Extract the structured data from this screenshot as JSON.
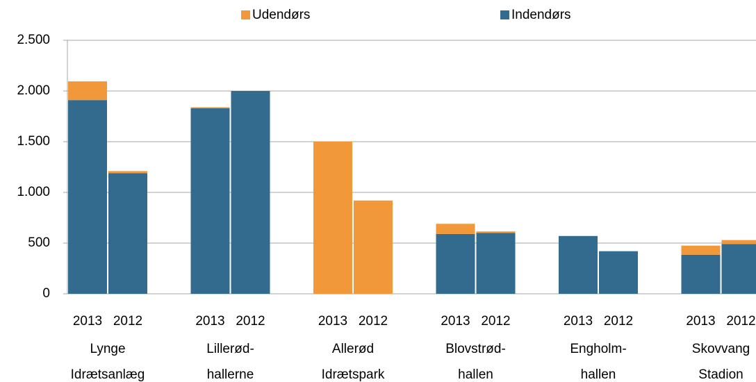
{
  "chart_data": {
    "type": "stacked_bar",
    "categories": [
      "2013",
      "2012",
      "2013",
      "2012",
      "2013",
      "2012",
      "2013",
      "2012",
      "2013",
      "2012",
      "2013",
      "2012"
    ],
    "groups": [
      [
        "Lynge",
        "Idrætsanlæg"
      ],
      [
        "Lillerød-",
        "hallerne"
      ],
      [
        "Allerød",
        "Idrætspark"
      ],
      [
        "Blovstrød-",
        "hallen"
      ],
      [
        "Engholm-",
        "hallen"
      ],
      [
        "Skovvang",
        "Stadion"
      ]
    ],
    "series": [
      {
        "name": "Indendørs",
        "color": "#336b8f",
        "values": [
          1910,
          1190,
          1830,
          2000,
          0,
          0,
          590,
          600,
          570,
          420,
          385,
          490
        ]
      },
      {
        "name": "Udendørs",
        "color": "#f0983a",
        "values": [
          185,
          20,
          10,
          0,
          1500,
          920,
          100,
          15,
          0,
          0,
          90,
          40
        ]
      }
    ],
    "ylim": [
      0,
      2500
    ],
    "yticks": [
      0,
      500,
      {
        "value": 1000,
        "label": "1.000"
      },
      {
        "value": 1500,
        "label": "1.500"
      },
      {
        "value": 2000,
        "label": "2.000"
      },
      {
        "value": 2500,
        "label": "2.500"
      }
    ],
    "grid": true,
    "legend": "top"
  }
}
